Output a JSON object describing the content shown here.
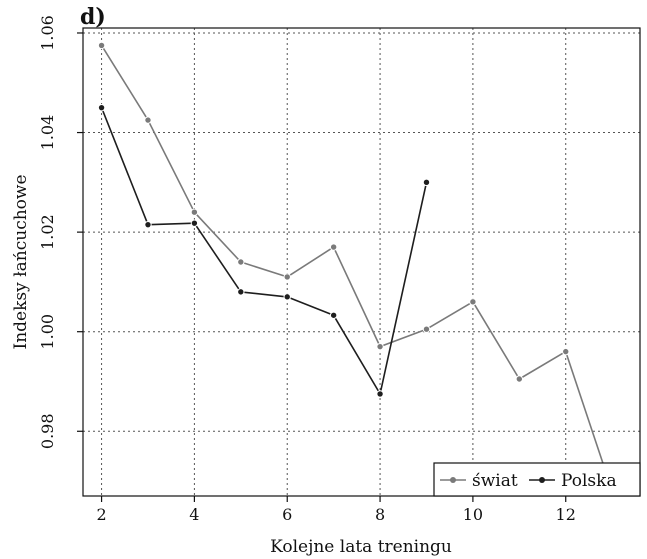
{
  "panel_label": "d)",
  "colors": {
    "swiat": "#7a7a7a",
    "polska": "#1e1e1e"
  },
  "chart_data": {
    "type": "line",
    "title": "",
    "xlabel": "Kolejne lata treningu",
    "ylabel": "Indeksy łańcuchowe",
    "xlim": [
      1.6,
      13.6
    ],
    "ylim": [
      0.967,
      1.061
    ],
    "xticks": [
      2,
      4,
      6,
      8,
      10,
      12
    ],
    "yticks": [
      0.98,
      1.0,
      1.02,
      1.04,
      1.06
    ],
    "xtick_labels": [
      "2",
      "4",
      "6",
      "8",
      "10",
      "12"
    ],
    "ytick_labels": [
      "0.98",
      "1.00",
      "1.02",
      "1.04",
      "1.06"
    ],
    "grid": true,
    "legend_position": "bottom-right",
    "series": [
      {
        "name": "świat",
        "x": [
          2,
          3,
          4,
          5,
          6,
          7,
          8,
          9,
          10,
          11,
          12,
          13
        ],
        "values": [
          1.0575,
          1.0425,
          1.024,
          1.014,
          1.011,
          1.017,
          0.997,
          1.0005,
          1.006,
          0.9905,
          0.996,
          0.968
        ]
      },
      {
        "name": "Polska",
        "x": [
          2,
          3,
          4,
          5,
          6,
          7,
          8,
          9
        ],
        "values": [
          1.045,
          1.0215,
          1.0218,
          1.008,
          1.007,
          1.0033,
          0.9875,
          1.03
        ]
      }
    ]
  }
}
